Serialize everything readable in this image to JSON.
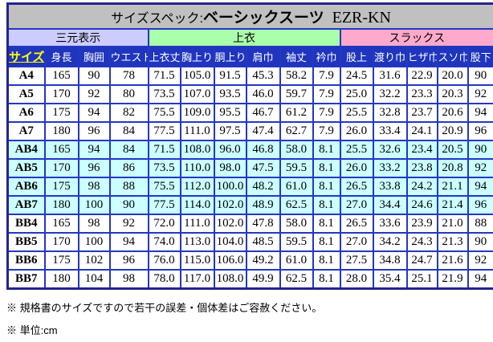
{
  "title": {
    "prefix": "サイズスペック:",
    "product": "ベーシックスーツ",
    "model": "EZR-KN"
  },
  "sections": [
    {
      "label": "三元表示",
      "span": 4,
      "color": "#CCCCFF"
    },
    {
      "label": "上衣",
      "span": 6,
      "color": "#AAFFAA"
    },
    {
      "label": "スラックス",
      "span": 5,
      "color": "#FFAACC"
    }
  ],
  "columns": [
    "サイズ",
    "身長",
    "胸囲",
    "ウエスト",
    "上衣丈",
    "胸上り",
    "胴上り",
    "肩巾",
    "袖丈",
    "衿巾",
    "股上",
    "渡り巾",
    "ヒザ巾",
    "スソ巾",
    "股下"
  ],
  "rows": [
    {
      "size": "A4",
      "highlight": false,
      "values": [
        "165",
        "90",
        "78",
        "71.5",
        "105.0",
        "91.5",
        "45.3",
        "58.2",
        "7.9",
        "24.5",
        "31.6",
        "22.9",
        "20.0",
        "90"
      ]
    },
    {
      "size": "A5",
      "highlight": false,
      "values": [
        "170",
        "92",
        "80",
        "73.5",
        "107.0",
        "93.5",
        "46.0",
        "59.7",
        "7.9",
        "25.0",
        "32.2",
        "23.3",
        "20.3",
        "92"
      ]
    },
    {
      "size": "A6",
      "highlight": false,
      "values": [
        "175",
        "94",
        "82",
        "75.5",
        "109.0",
        "95.5",
        "46.7",
        "61.2",
        "7.9",
        "25.5",
        "32.8",
        "23.7",
        "20.6",
        "94"
      ]
    },
    {
      "size": "A7",
      "highlight": false,
      "values": [
        "180",
        "96",
        "84",
        "77.5",
        "111.0",
        "97.5",
        "47.4",
        "62.7",
        "7.9",
        "26.0",
        "33.4",
        "24.1",
        "20.9",
        "96"
      ]
    },
    {
      "size": "AB4",
      "highlight": true,
      "values": [
        "165",
        "94",
        "84",
        "71.5",
        "108.0",
        "96.0",
        "46.8",
        "58.0",
        "8.1",
        "25.5",
        "32.6",
        "23.4",
        "20.5",
        "90"
      ]
    },
    {
      "size": "AB5",
      "highlight": true,
      "values": [
        "170",
        "96",
        "86",
        "73.5",
        "110.0",
        "98.0",
        "47.5",
        "59.5",
        "8.1",
        "26.0",
        "33.2",
        "23.8",
        "20.8",
        "92"
      ]
    },
    {
      "size": "AB6",
      "highlight": true,
      "values": [
        "175",
        "98",
        "88",
        "75.5",
        "112.0",
        "100.0",
        "48.2",
        "61.0",
        "8.1",
        "26.5",
        "33.8",
        "24.2",
        "21.1",
        "94"
      ]
    },
    {
      "size": "AB7",
      "highlight": true,
      "values": [
        "180",
        "100",
        "90",
        "77.5",
        "114.0",
        "102.0",
        "48.9",
        "62.5",
        "8.1",
        "27.0",
        "34.4",
        "24.6",
        "21.4",
        "96"
      ]
    },
    {
      "size": "BB4",
      "highlight": false,
      "values": [
        "165",
        "98",
        "92",
        "72.0",
        "111.0",
        "102.0",
        "47.8",
        "58.0",
        "8.1",
        "26.5",
        "33.6",
        "23.9",
        "21.0",
        "88"
      ]
    },
    {
      "size": "BB5",
      "highlight": false,
      "values": [
        "170",
        "100",
        "94",
        "74.0",
        "113.0",
        "104.0",
        "48.5",
        "59.5",
        "8.1",
        "27.0",
        "34.2",
        "24.3",
        "21.3",
        "90"
      ]
    },
    {
      "size": "BB6",
      "highlight": false,
      "values": [
        "175",
        "102",
        "96",
        "76.0",
        "115.0",
        "106.0",
        "49.2",
        "61.0",
        "8.1",
        "27.5",
        "34.8",
        "24.7",
        "21.6",
        "92"
      ]
    },
    {
      "size": "BB7",
      "highlight": false,
      "values": [
        "180",
        "104",
        "98",
        "78.0",
        "117.0",
        "108.0",
        "49.9",
        "62.5",
        "8.1",
        "28.0",
        "35.4",
        "25.1",
        "21.9",
        "94"
      ]
    }
  ],
  "notes": [
    "※ 規格書のサイズですので若干の誤差・個体差はご容赦ください。",
    "※ 単位:cm"
  ],
  "colors": {
    "border_outer": "#23238F",
    "border_cell": "#2438C0",
    "header_bg": "#1F35BE",
    "header_text": "#FFFFFF",
    "size_header_text": "#FFFF00",
    "title_bg": "#C0C0C0",
    "highlight_row_bg": "#CCFFFF"
  }
}
